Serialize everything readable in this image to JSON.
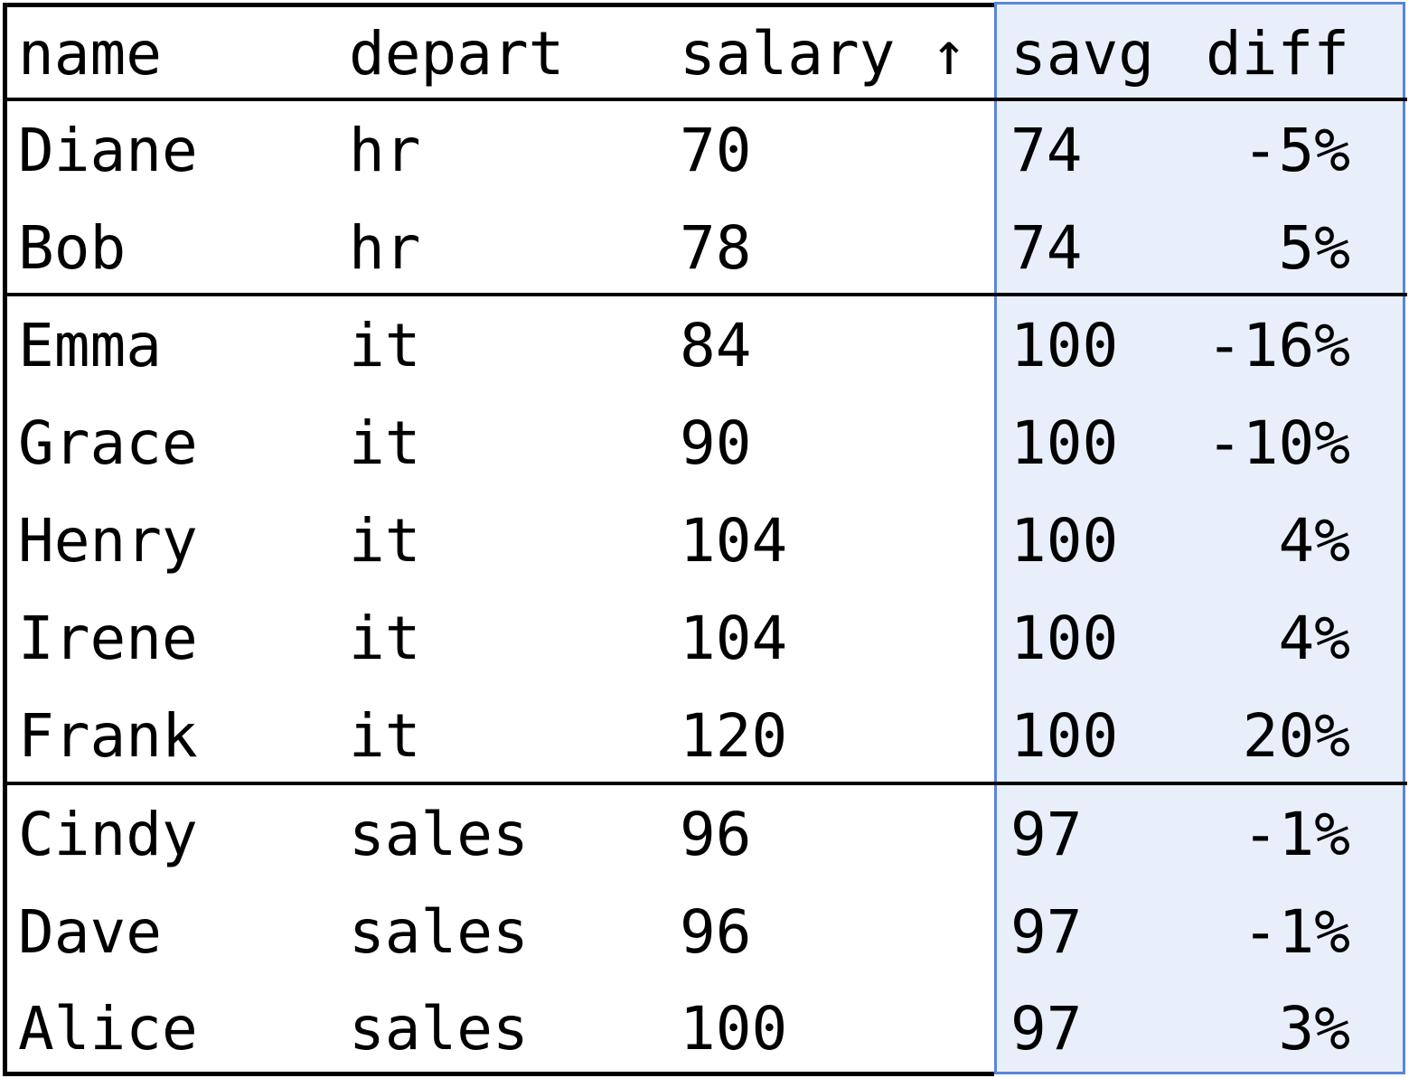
{
  "colors": {
    "window_fill": "#e8effa",
    "window_border": "#5b86d8",
    "text": "#000000",
    "rule": "#000000"
  },
  "header": {
    "name": "name",
    "depart": "depart",
    "salary": "salary ↑",
    "savg": "savg",
    "diff": "diff"
  },
  "rows": [
    {
      "name": "Diane",
      "depart": "hr",
      "salary": "70",
      "savg": "74",
      "diff": "-5%"
    },
    {
      "name": "Bob",
      "depart": "hr",
      "salary": "78",
      "savg": "74",
      "diff": "5%"
    },
    {
      "name": "Emma",
      "depart": "it",
      "salary": "84",
      "savg": "100",
      "diff": "-16%"
    },
    {
      "name": "Grace",
      "depart": "it",
      "salary": "90",
      "savg": "100",
      "diff": "-10%"
    },
    {
      "name": "Henry",
      "depart": "it",
      "salary": "104",
      "savg": "100",
      "diff": "4%"
    },
    {
      "name": "Irene",
      "depart": "it",
      "salary": "104",
      "savg": "100",
      "diff": "4%"
    },
    {
      "name": "Frank",
      "depart": "it",
      "salary": "120",
      "savg": "100",
      "diff": "20%"
    },
    {
      "name": "Cindy",
      "depart": "sales",
      "salary": "96",
      "savg": "97",
      "diff": "-1%"
    },
    {
      "name": "Dave",
      "depart": "sales",
      "salary": "96",
      "savg": "97",
      "diff": "-1%"
    },
    {
      "name": "Alice",
      "depart": "sales",
      "salary": "100",
      "savg": "97",
      "diff": "3%"
    }
  ]
}
